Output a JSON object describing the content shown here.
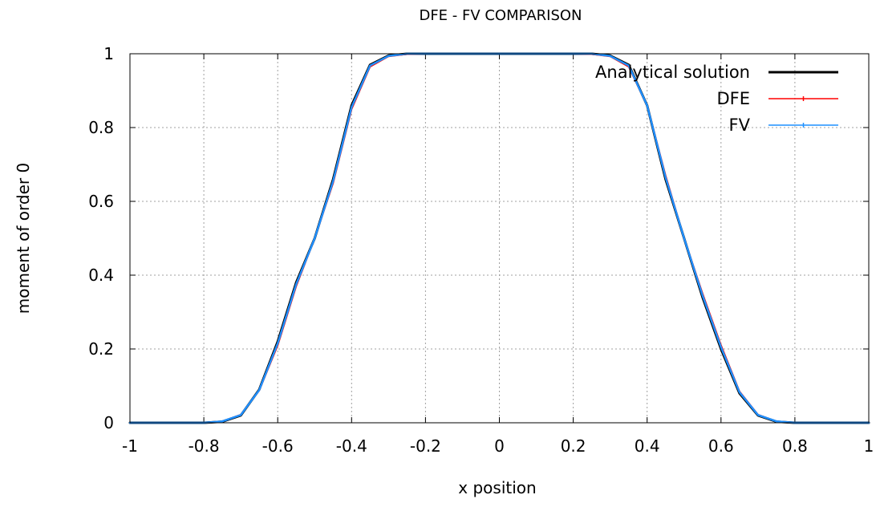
{
  "chart_data": {
    "type": "line",
    "title": "DFE - FV COMPARISON",
    "xlabel": "x position",
    "ylabel": "moment of order 0",
    "xlim": [
      -1,
      1
    ],
    "ylim": [
      0,
      1
    ],
    "xticks": [
      "-1",
      "-0.8",
      "-0.6",
      "-0.4",
      "-0.2",
      "0",
      "0.2",
      "0.4",
      "0.6",
      "0.8",
      "1"
    ],
    "yticks": [
      "0",
      "0.2",
      "0.4",
      "0.6",
      "0.8",
      "1"
    ],
    "grid": true,
    "legend_position": "top-right",
    "series": [
      {
        "name": "Analytical solution",
        "color": "#000000",
        "x": [
          -1,
          -0.8,
          -0.75,
          -0.7,
          -0.65,
          -0.6,
          -0.55,
          -0.5,
          -0.45,
          -0.4,
          -0.35,
          -0.3,
          -0.25,
          -0.2,
          0,
          0.2,
          0.25,
          0.3,
          0.35,
          0.4,
          0.45,
          0.5,
          0.55,
          0.6,
          0.65,
          0.7,
          0.75,
          0.8,
          1
        ],
        "y": [
          0,
          0,
          0.003,
          0.02,
          0.09,
          0.22,
          0.38,
          0.5,
          0.66,
          0.86,
          0.97,
          0.995,
          1,
          1,
          1,
          1,
          1,
          0.995,
          0.97,
          0.86,
          0.66,
          0.5,
          0.34,
          0.2,
          0.08,
          0.02,
          0.003,
          0,
          0
        ]
      },
      {
        "name": "DFE",
        "color": "#ff0000",
        "x": [
          -1,
          -0.8,
          -0.75,
          -0.7,
          -0.65,
          -0.6,
          -0.55,
          -0.5,
          -0.45,
          -0.4,
          -0.35,
          -0.3,
          -0.25,
          -0.2,
          0,
          0.2,
          0.25,
          0.3,
          0.35,
          0.4,
          0.45,
          0.5,
          0.55,
          0.6,
          0.65,
          0.7,
          0.75,
          0.8,
          1
        ],
        "y": [
          0,
          0,
          0.004,
          0.022,
          0.088,
          0.21,
          0.37,
          0.5,
          0.65,
          0.85,
          0.965,
          0.993,
          0.999,
          1,
          1,
          1,
          0.999,
          0.993,
          0.965,
          0.86,
          0.67,
          0.5,
          0.35,
          0.21,
          0.085,
          0.022,
          0.004,
          0,
          0
        ]
      },
      {
        "name": "FV",
        "color": "#1e90ff",
        "x": [
          -1,
          -0.8,
          -0.75,
          -0.7,
          -0.65,
          -0.6,
          -0.55,
          -0.5,
          -0.45,
          -0.4,
          -0.35,
          -0.3,
          -0.25,
          -0.2,
          0,
          0.2,
          0.25,
          0.3,
          0.35,
          0.4,
          0.45,
          0.5,
          0.55,
          0.6,
          0.65,
          0.7,
          0.75,
          0.8,
          1
        ],
        "y": [
          0,
          0,
          0.004,
          0.021,
          0.089,
          0.215,
          0.375,
          0.5,
          0.655,
          0.855,
          0.968,
          0.994,
          1,
          1,
          1,
          1,
          1,
          0.994,
          0.968,
          0.86,
          0.665,
          0.5,
          0.345,
          0.205,
          0.083,
          0.021,
          0.004,
          0,
          0
        ]
      }
    ]
  }
}
